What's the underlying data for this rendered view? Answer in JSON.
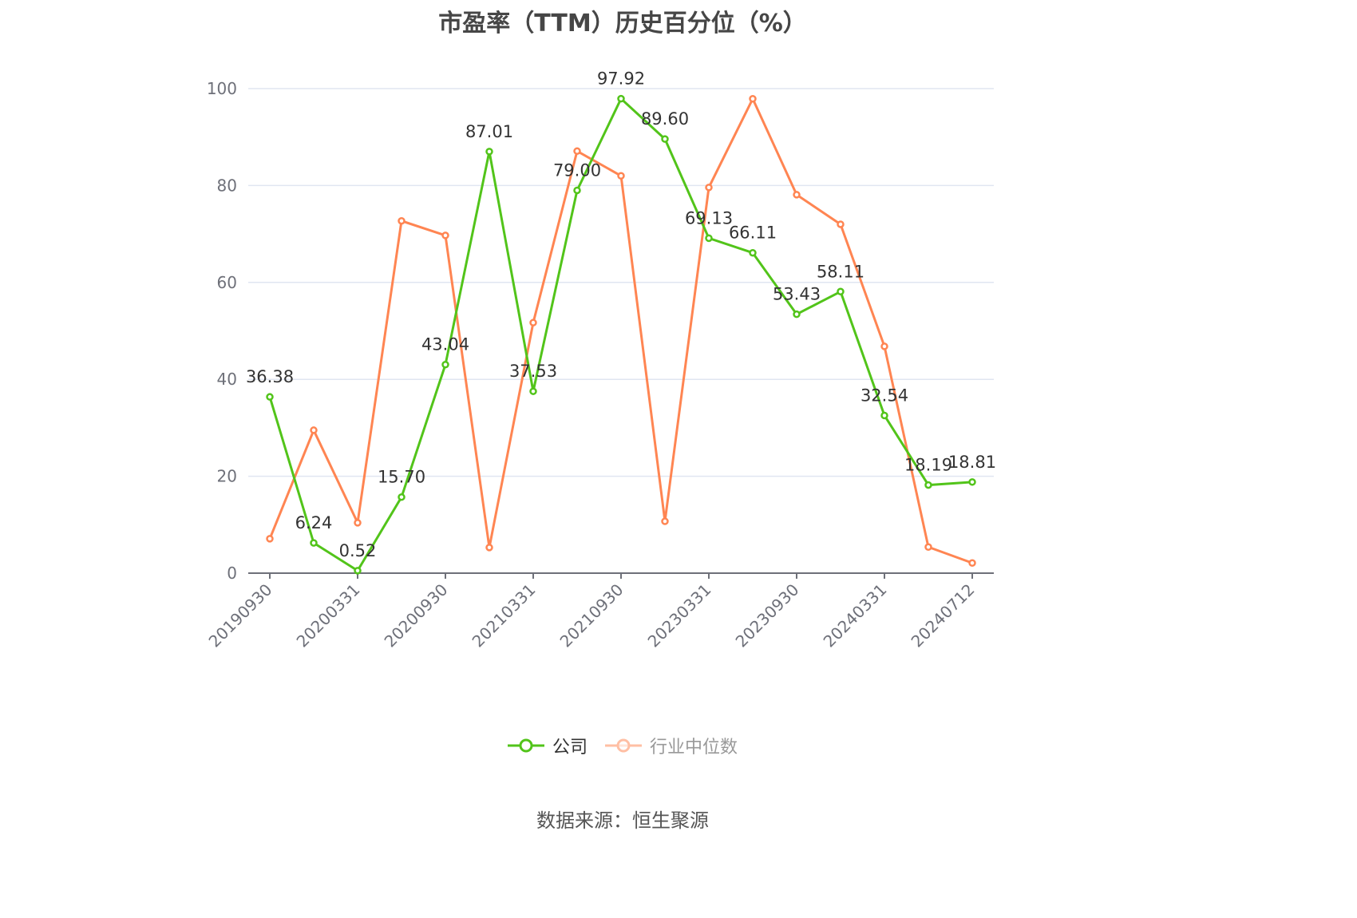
{
  "chart_data": {
    "type": "line",
    "title": "市盈率（TTM）历史百分位（%）",
    "xlabel": "",
    "ylabel": "",
    "ylim": [
      0,
      100
    ],
    "yticks": [
      0,
      20,
      40,
      60,
      80,
      100
    ],
    "grid": true,
    "legend_position": "bottom",
    "categories": [
      "20190930",
      "",
      "20200331",
      "",
      "20200930",
      "",
      "20210331",
      "",
      "20210930",
      "",
      "20230331",
      "",
      "20230930",
      "",
      "20240331",
      "",
      "20240712"
    ],
    "xtick_labels": [
      "20190930",
      "20200331",
      "20200930",
      "20210331",
      "20210930",
      "20230331",
      "20230930",
      "20240331",
      "20240712"
    ],
    "series": [
      {
        "name": "公司",
        "color": "#52c41a",
        "values": [
          36.38,
          6.24,
          0.52,
          15.7,
          43.04,
          87.01,
          37.53,
          79.0,
          97.92,
          89.6,
          69.13,
          66.11,
          53.43,
          58.11,
          32.54,
          18.19,
          18.81
        ],
        "labels": [
          "36.38",
          "6.24",
          "0.52",
          "15.70",
          "43.04",
          "87.01",
          "37.53",
          "79.00",
          "97.92",
          "89.60",
          "69.13",
          "66.11",
          "53.43",
          "58.11",
          "32.54",
          "18.19",
          "18.81"
        ]
      },
      {
        "name": "行业中位数",
        "color": "#ff8552",
        "values": [
          7.1,
          29.5,
          10.4,
          72.7,
          69.7,
          5.3,
          51.7,
          87.1,
          82.0,
          10.7,
          79.6,
          97.9,
          78.1,
          72.0,
          46.8,
          5.4,
          2.1
        ]
      }
    ]
  },
  "header": {
    "title": "市盈率（TTM）历史百分位（%）"
  },
  "legend": {
    "company_label": "公司",
    "industry_label": "行业中位数",
    "company_color": "#52c41a",
    "industry_color": "#ff8552"
  },
  "footer": {
    "source": "数据来源：恒生聚源"
  }
}
